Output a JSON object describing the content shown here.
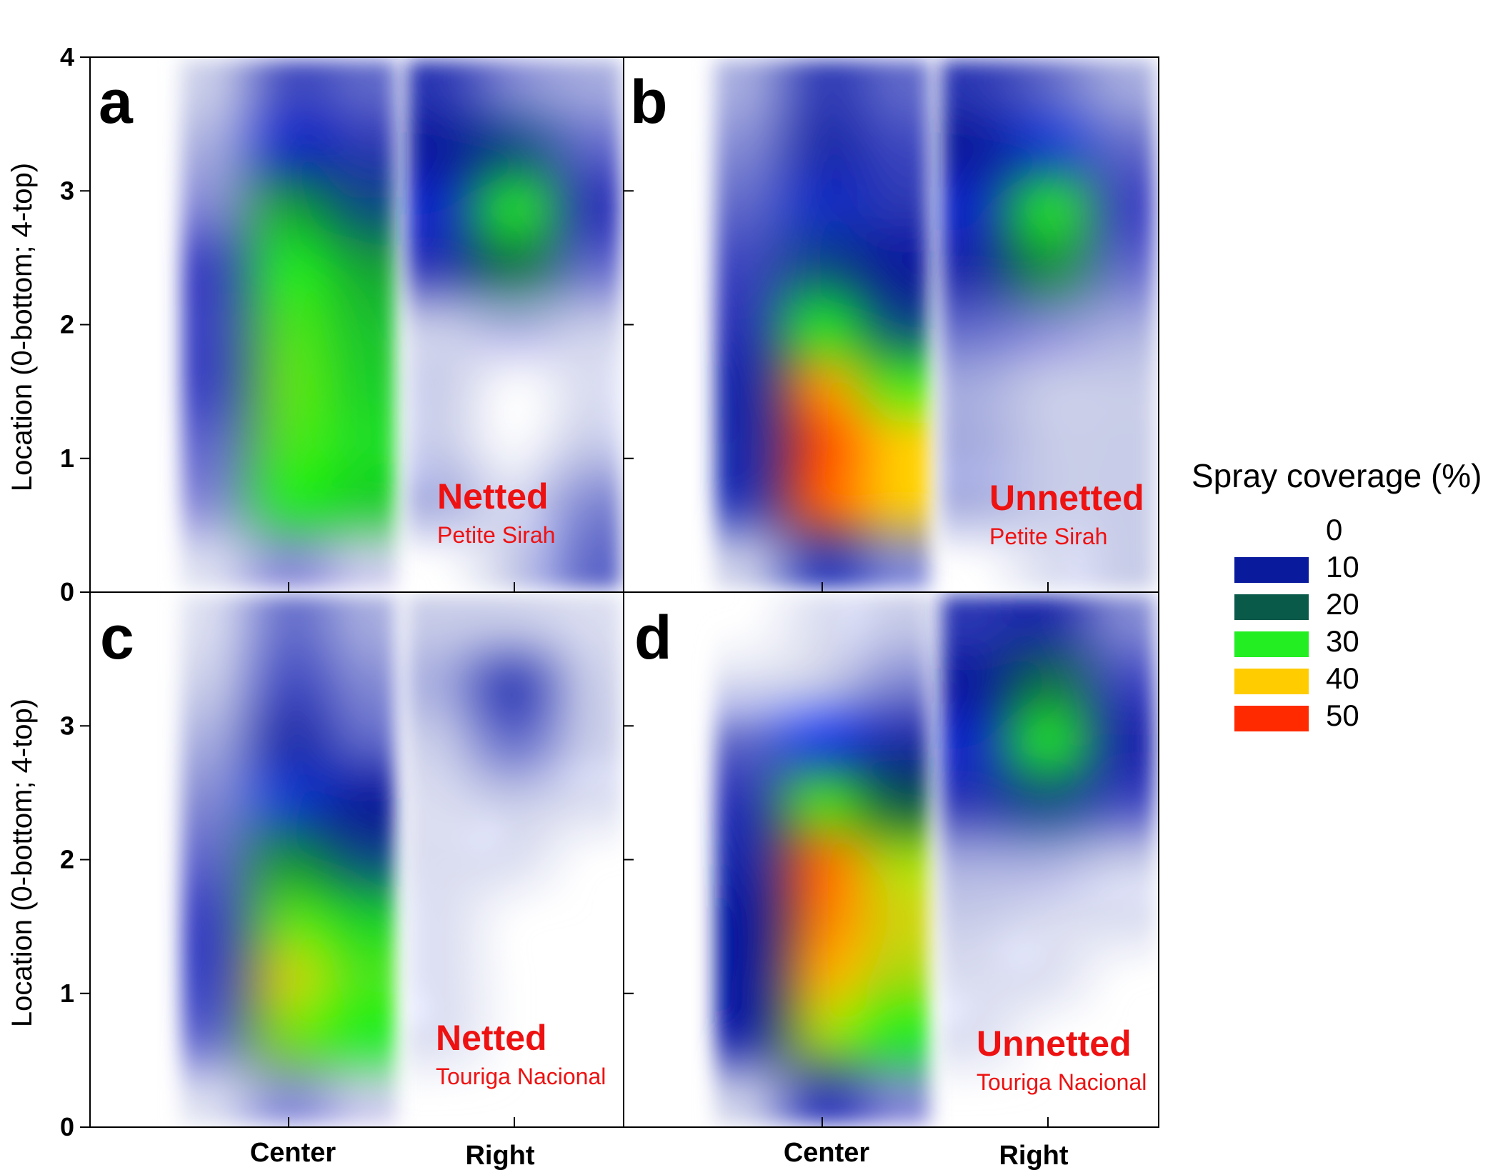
{
  "chart_data": {
    "type": "heatmap",
    "ylabel": "Location (0-bottom; 4-top)",
    "x_tick_labels": [
      "Center",
      "Right"
    ],
    "y_ticks": [
      0,
      1,
      2,
      3,
      4
    ],
    "ylim": [
      0,
      4
    ],
    "colorbar": {
      "title": "Spray coverage (%)",
      "levels": [
        0,
        10,
        20,
        30,
        40,
        50
      ],
      "colors": [
        "#0a1a9c",
        "#0a5a4a",
        "#22ee22",
        "#ffcc00",
        "#ff2a00"
      ]
    },
    "panels": [
      {
        "letter": "a",
        "condition": "Netted",
        "variety": "Petite Sirah",
        "grid": {
          "center_x": [
            -0.5,
            0,
            0.5
          ],
          "right_x": [
            0,
            0.5,
            1
          ],
          "y": [
            0,
            0.5,
            1,
            1.5,
            2,
            2.5,
            3,
            3.5,
            4
          ],
          "values": [
            [
              2,
              5,
              3,
              1,
              3,
              6
            ],
            [
              5,
              30,
              28,
              4,
              2,
              5
            ],
            [
              6,
              32,
              29,
              3,
              1,
              3
            ],
            [
              7,
              33,
              28,
              3,
              1,
              2
            ],
            [
              7,
              32,
              27,
              3,
              4,
              3
            ],
            [
              7,
              30,
              25,
              8,
              22,
              6
            ],
            [
              5,
              25,
              18,
              12,
              30,
              8
            ],
            [
              4,
              12,
              8,
              10,
              18,
              6
            ],
            [
              3,
              7,
              6,
              8,
              5,
              4
            ]
          ]
        }
      },
      {
        "letter": "b",
        "condition": "Unnetted",
        "variety": "Petite Sirah",
        "grid": {
          "center_x": [
            -0.5,
            0,
            0.5
          ],
          "right_x": [
            0,
            0.5,
            1
          ],
          "y": [
            0,
            0.5,
            1,
            1.5,
            2,
            2.5,
            3,
            3.5,
            4
          ],
          "values": [
            [
              3,
              8,
              5,
              1,
              2,
              3
            ],
            [
              8,
              47,
              40,
              4,
              3,
              3
            ],
            [
              9,
              48,
              40,
              4,
              3,
              3
            ],
            [
              9,
              43,
              32,
              4,
              3,
              3
            ],
            [
              8,
              30,
              18,
              6,
              5,
              4
            ],
            [
              7,
              18,
              10,
              9,
              24,
              6
            ],
            [
              6,
              12,
              8,
              12,
              30,
              7
            ],
            [
              5,
              9,
              7,
              10,
              15,
              6
            ],
            [
              4,
              8,
              6,
              8,
              6,
              4
            ]
          ]
        }
      },
      {
        "letter": "c",
        "condition": "Netted",
        "variety": "Touriga Nacional",
        "grid": {
          "center_x": [
            -0.5,
            0,
            0.5
          ],
          "right_x": [
            0,
            0.5,
            1
          ],
          "y": [
            0,
            0.5,
            1,
            1.5,
            2,
            2.5,
            3,
            3.5,
            4
          ],
          "values": [
            [
              2,
              5,
              3,
              1,
              1,
              1
            ],
            [
              6,
              34,
              30,
              2,
              1,
              1
            ],
            [
              7,
              38,
              32,
              2,
              1,
              1
            ],
            [
              7,
              33,
              28,
              2,
              1,
              1
            ],
            [
              6,
              24,
              18,
              2,
              2,
              1
            ],
            [
              5,
              15,
              10,
              2,
              3,
              2
            ],
            [
              4,
              9,
              6,
              3,
              6,
              3
            ],
            [
              3,
              7,
              5,
              4,
              8,
              3
            ],
            [
              2,
              6,
              4,
              3,
              3,
              2
            ]
          ]
        }
      },
      {
        "letter": "d",
        "condition": "Unnetted",
        "variety": "Touriga Nacional",
        "grid": {
          "center_x": [
            -0.5,
            0,
            0.5
          ],
          "right_x": [
            0,
            0.5,
            1
          ],
          "y": [
            0,
            0.5,
            1,
            1.5,
            2,
            2.5,
            3,
            3.5,
            4
          ],
          "values": [
            [
              3,
              8,
              5,
              1,
              1,
              1
            ],
            [
              9,
              36,
              30,
              2,
              1,
              1
            ],
            [
              10,
              42,
              36,
              2,
              2,
              1
            ],
            [
              10,
              45,
              38,
              3,
              2,
              2
            ],
            [
              9,
              46,
              36,
              4,
              4,
              3
            ],
            [
              8,
              32,
              20,
              8,
              18,
              7
            ],
            [
              6,
              14,
              9,
              12,
              30,
              9
            ],
            [
              2,
              3,
              5,
              10,
              22,
              7
            ],
            [
              1,
              2,
              3,
              8,
              9,
              5
            ]
          ]
        }
      }
    ]
  }
}
